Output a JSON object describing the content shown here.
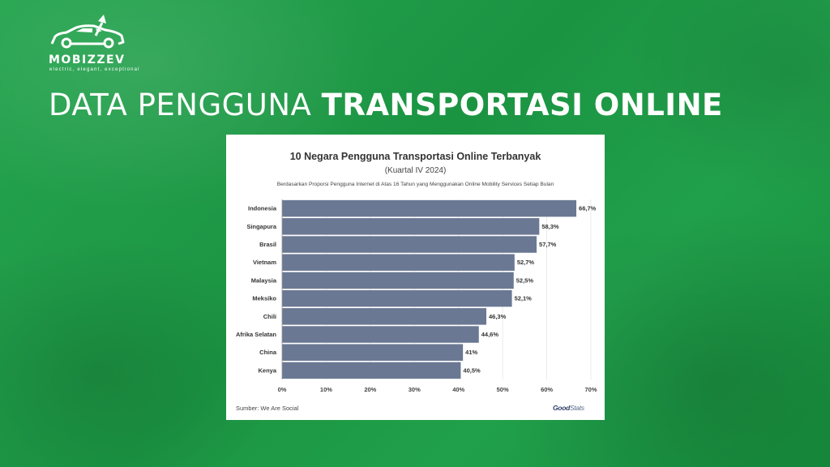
{
  "brand": {
    "name": "MOBIZZEV",
    "tagline": "electric, elegant, exceptional"
  },
  "headline": {
    "light": "DATA PENGGUNA ",
    "bold": "TRANSPORTASI ONLINE"
  },
  "colors": {
    "background": "#1f9a45",
    "bar": "#6b7893",
    "text": "#333333"
  },
  "chart_data": {
    "type": "bar",
    "orientation": "horizontal",
    "title": "10 Negara Pengguna Transportasi Online Terbanyak",
    "subtitle": "(Kuartal IV 2024)",
    "note": "Berdasarkan Proporsi Pengguna Internet di Atas 16 Tahun yang Menggunakan Online Mobility Services Setiap Bulan",
    "categories": [
      "Indonesia",
      "Singapura",
      "Brasil",
      "Vietnam",
      "Malaysia",
      "Meksiko",
      "Chili",
      "Afrika Selatan",
      "China",
      "Kenya"
    ],
    "values": [
      66.7,
      58.3,
      57.7,
      52.7,
      52.5,
      52.1,
      46.3,
      44.6,
      41,
      40.5
    ],
    "value_labels": [
      "66,7%",
      "58,3%",
      "57,7%",
      "52,7%",
      "52,5%",
      "52,1%",
      "46,3%",
      "44,6%",
      "41%",
      "40,5%"
    ],
    "xlim": [
      0,
      70
    ],
    "xticks": [
      "0%",
      "10%",
      "20%",
      "30%",
      "40%",
      "50%",
      "60%",
      "70%"
    ],
    "grid": true,
    "source": "Sumber: We Are Social",
    "logo_text": [
      "Good",
      "Stats"
    ]
  }
}
